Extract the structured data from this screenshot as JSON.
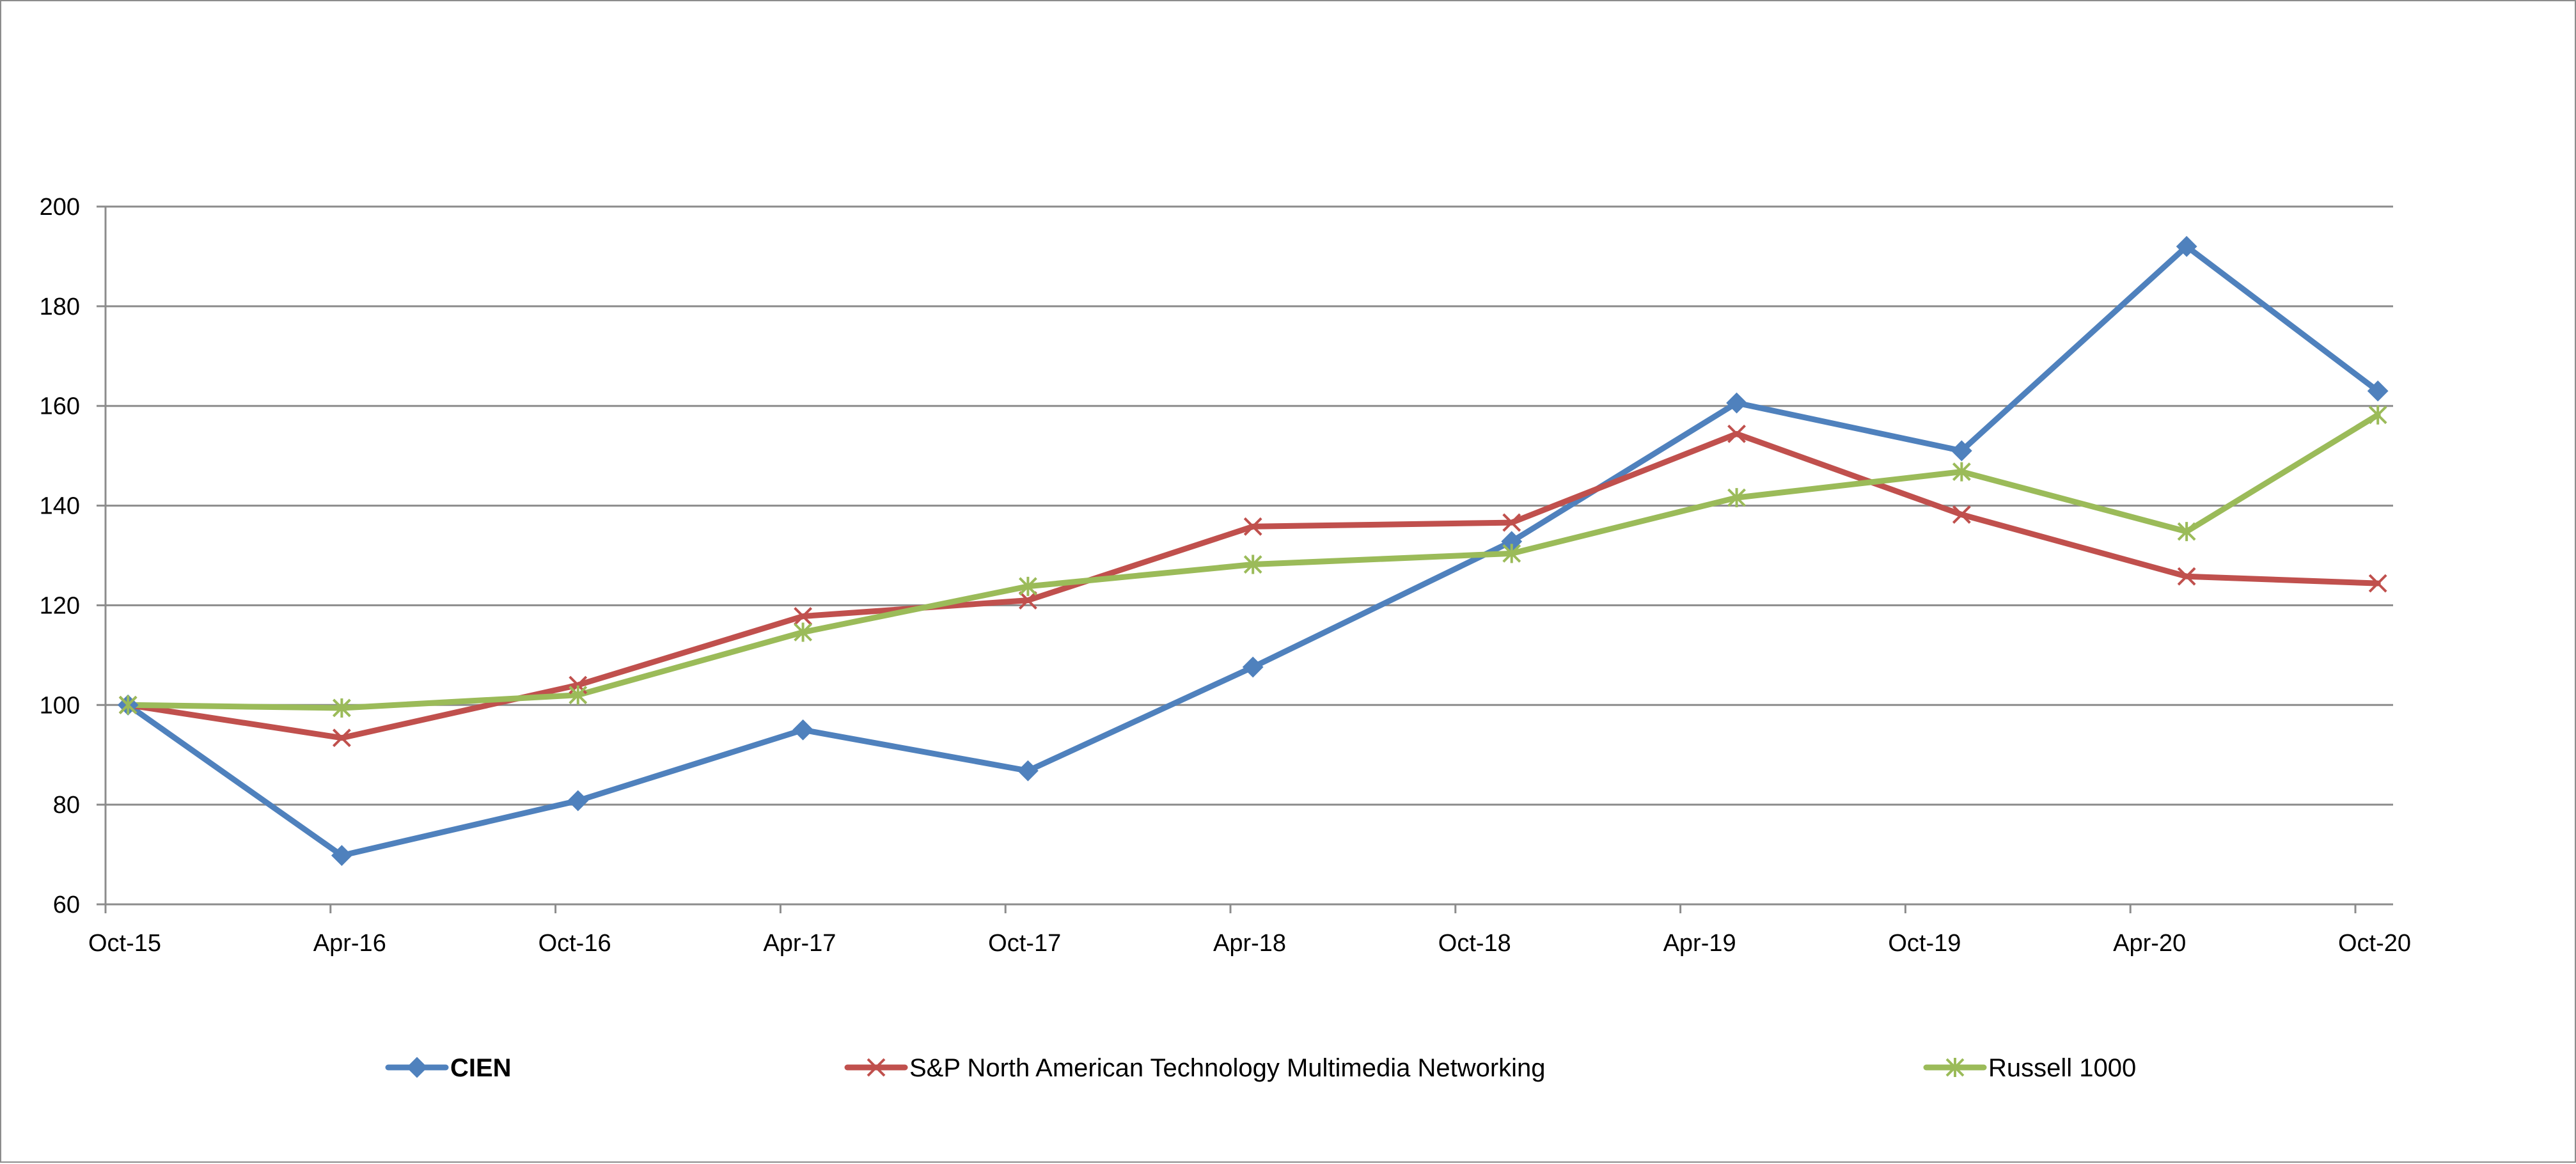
{
  "chart_data": {
    "type": "line",
    "title": "",
    "xlabel": "",
    "ylabel": "",
    "categories": [
      "Oct-15",
      "Apr-16",
      "Oct-16",
      "Apr-17",
      "Oct-17",
      "Apr-18",
      "Oct-18",
      "Apr-19",
      "Oct-19",
      "Apr-20",
      "Oct-20"
    ],
    "ylim": [
      60,
      200
    ],
    "yticks": [
      60,
      80,
      100,
      120,
      140,
      160,
      180,
      200
    ],
    "ytick_labels": [
      "60",
      "80",
      "100",
      "120",
      "140",
      "160",
      "180",
      "200"
    ],
    "grid": true,
    "legend_position": "bottom",
    "series": [
      {
        "name": "CIEN",
        "color": "#4f81bd",
        "marker": "diamond",
        "x": [
          0.1,
          1.05,
          2.1,
          3.1,
          4.1,
          5.1,
          6.25,
          7.25,
          8.25,
          9.25,
          10.1
        ],
        "values": [
          100,
          69.8,
          80.8,
          95,
          86.8,
          107.6,
          132.8,
          160.6,
          151,
          192,
          163
        ]
      },
      {
        "name": "S&P North American Technology Multimedia Networking",
        "color": "#c0504d",
        "marker": "x",
        "x": [
          0.1,
          1.05,
          2.1,
          3.1,
          4.1,
          5.1,
          6.25,
          7.25,
          8.25,
          9.25,
          10.1
        ],
        "values": [
          100,
          93.4,
          104,
          117.8,
          121,
          135.8,
          136.6,
          154.4,
          138.2,
          125.8,
          124.4
        ]
      },
      {
        "name": "Russell 1000",
        "color": "#9bbb59",
        "marker": "star",
        "x": [
          0.1,
          1.05,
          2.1,
          3.1,
          4.1,
          5.1,
          6.25,
          7.25,
          8.25,
          9.25,
          10.1
        ],
        "values": [
          100,
          99.4,
          102,
          114.6,
          123.8,
          128.2,
          130.4,
          141.6,
          146.8,
          134.8,
          158.2
        ]
      }
    ]
  }
}
